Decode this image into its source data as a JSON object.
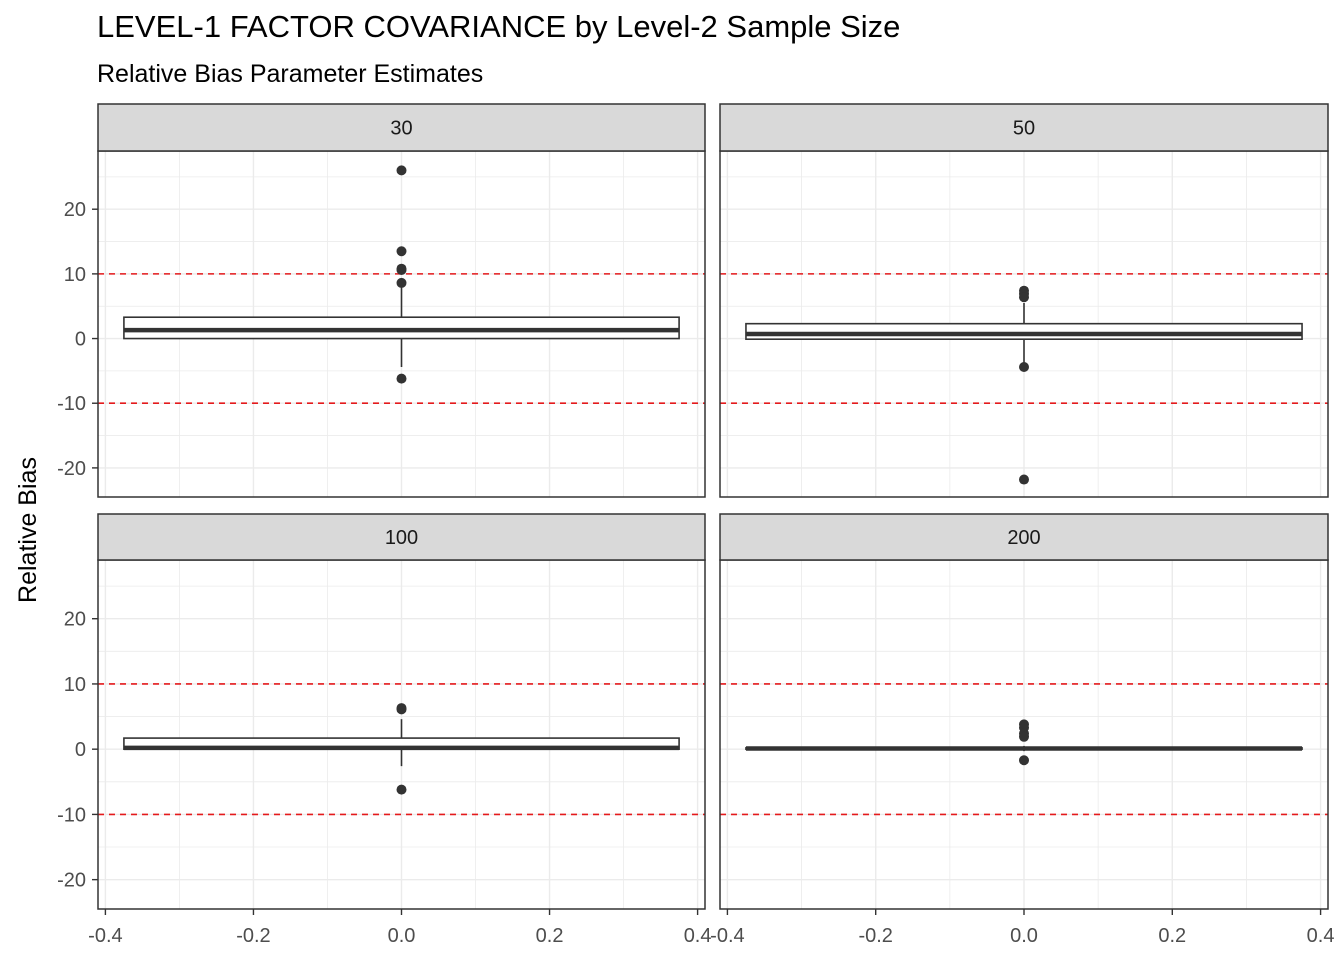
{
  "chart_data": {
    "type": "box",
    "title": "LEVEL-1 FACTOR COVARIANCE by Level-2 Sample Size",
    "subtitle": "Relative Bias Parameter Estimates",
    "xlabel": "",
    "ylabel": "Relative Bias",
    "xlim": [
      -0.41,
      0.41
    ],
    "ylim": [
      -24.5,
      29
    ],
    "x_ticks": [
      -0.4,
      -0.2,
      0.0,
      0.2,
      0.4
    ],
    "x_tick_labels": [
      "-0.4",
      "-0.2",
      "0.0",
      "0.2",
      "0.4"
    ],
    "y_ticks": [
      -20,
      -10,
      0,
      10,
      20
    ],
    "y_tick_labels": [
      "-20",
      "-10",
      "0",
      "10",
      "20"
    ],
    "reference_lines": [
      10,
      -10
    ],
    "reference_line_color": "#e41a1c",
    "grid": true,
    "facets": [
      {
        "label": "30",
        "box": {
          "xmin": -0.375,
          "xmax": 0.375,
          "q1": 0.0,
          "median": 1.3,
          "q3": 3.3,
          "whisker_low": -4.4,
          "whisker_high": 7.9
        },
        "outliers": [
          26.0,
          13.5,
          10.8,
          10.6,
          8.6,
          -6.2
        ]
      },
      {
        "label": "50",
        "box": {
          "xmin": -0.375,
          "xmax": 0.375,
          "q1": -0.1,
          "median": 0.7,
          "q3": 2.3,
          "whisker_low": -3.9,
          "whisker_high": 5.5
        },
        "outliers": [
          7.4,
          6.9,
          6.4,
          -4.4,
          -21.8
        ]
      },
      {
        "label": "100",
        "box": {
          "xmin": -0.375,
          "xmax": 0.375,
          "q1": 0.0,
          "median": 0.2,
          "q3": 1.7,
          "whisker_low": -2.6,
          "whisker_high": 4.6
        },
        "outliers": [
          6.3,
          6.1,
          -6.2
        ]
      },
      {
        "label": "200",
        "box": {
          "xmin": -0.375,
          "xmax": 0.375,
          "q1": 0.0,
          "median": 0.1,
          "q3": 0.2,
          "whisker_low": -0.3,
          "whisker_high": 0.5
        },
        "outliers": [
          3.8,
          3.3,
          2.4,
          1.9,
          -1.7
        ]
      }
    ],
    "colors": {
      "box_line": "#333333",
      "point": "#333333",
      "grid": "#ebebeb",
      "strip_bg": "#d9d9d9",
      "panel_border": "#333333"
    }
  }
}
